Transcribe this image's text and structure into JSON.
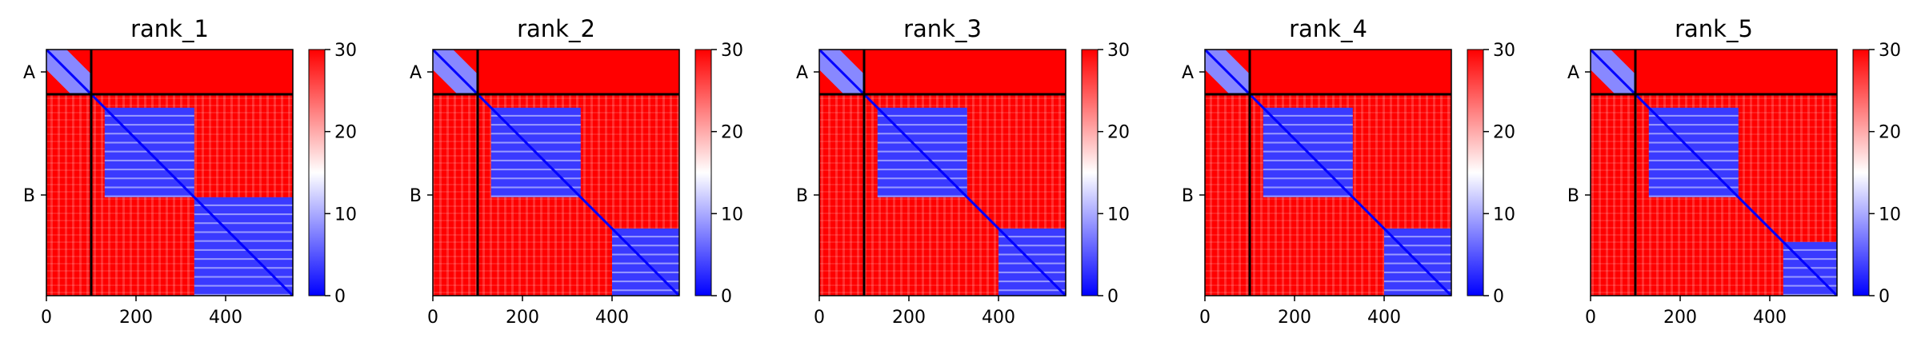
{
  "chart_data": [
    {
      "type": "heatmap",
      "title": "rank_1",
      "x_ticks": [
        "0",
        "200",
        "400"
      ],
      "x_tick_values": [
        0,
        200,
        400
      ],
      "y_tick_labels": [
        "A",
        "B"
      ],
      "chain_boundary": 100,
      "sequence_length": 550,
      "colorbar": {
        "ticks": [
          "0",
          "10",
          "20",
          "30"
        ],
        "tick_values": [
          0,
          10,
          20,
          30
        ],
        "range": [
          0,
          30
        ],
        "colormap": "bwr"
      },
      "domains": [
        [
          130,
          330
        ],
        [
          330,
          550
        ]
      ]
    },
    {
      "type": "heatmap",
      "title": "rank_2",
      "x_ticks": [
        "0",
        "200",
        "400"
      ],
      "x_tick_values": [
        0,
        200,
        400
      ],
      "y_tick_labels": [
        "A",
        "B"
      ],
      "chain_boundary": 100,
      "sequence_length": 550,
      "colorbar": {
        "ticks": [
          "0",
          "10",
          "20",
          "30"
        ],
        "tick_values": [
          0,
          10,
          20,
          30
        ],
        "range": [
          0,
          30
        ],
        "colormap": "bwr"
      },
      "domains": [
        [
          130,
          330
        ],
        [
          400,
          550
        ]
      ]
    },
    {
      "type": "heatmap",
      "title": "rank_3",
      "x_ticks": [
        "0",
        "200",
        "400"
      ],
      "x_tick_values": [
        0,
        200,
        400
      ],
      "y_tick_labels": [
        "A",
        "B"
      ],
      "chain_boundary": 100,
      "sequence_length": 550,
      "colorbar": {
        "ticks": [
          "0",
          "10",
          "20",
          "30"
        ],
        "tick_values": [
          0,
          10,
          20,
          30
        ],
        "range": [
          0,
          30
        ],
        "colormap": "bwr"
      },
      "domains": [
        [
          130,
          330
        ],
        [
          400,
          550
        ]
      ]
    },
    {
      "type": "heatmap",
      "title": "rank_4",
      "x_ticks": [
        "0",
        "200",
        "400"
      ],
      "x_tick_values": [
        0,
        200,
        400
      ],
      "y_tick_labels": [
        "A",
        "B"
      ],
      "chain_boundary": 100,
      "sequence_length": 550,
      "colorbar": {
        "ticks": [
          "0",
          "10",
          "20",
          "30"
        ],
        "tick_values": [
          0,
          10,
          20,
          30
        ],
        "range": [
          0,
          30
        ],
        "colormap": "bwr"
      },
      "domains": [
        [
          130,
          330
        ],
        [
          400,
          550
        ]
      ]
    },
    {
      "type": "heatmap",
      "title": "rank_5",
      "x_ticks": [
        "0",
        "200",
        "400"
      ],
      "x_tick_values": [
        0,
        200,
        400
      ],
      "y_tick_labels": [
        "A",
        "B"
      ],
      "chain_boundary": 100,
      "sequence_length": 550,
      "colorbar": {
        "ticks": [
          "0",
          "10",
          "20",
          "30"
        ],
        "tick_values": [
          0,
          10,
          20,
          30
        ],
        "range": [
          0,
          30
        ],
        "colormap": "bwr"
      },
      "domains": [
        [
          130,
          330
        ],
        [
          430,
          550
        ]
      ]
    }
  ],
  "colors": {
    "high": "#ff0000",
    "mid": "#ffffff",
    "low": "#0000ff",
    "axis": "#000000"
  }
}
